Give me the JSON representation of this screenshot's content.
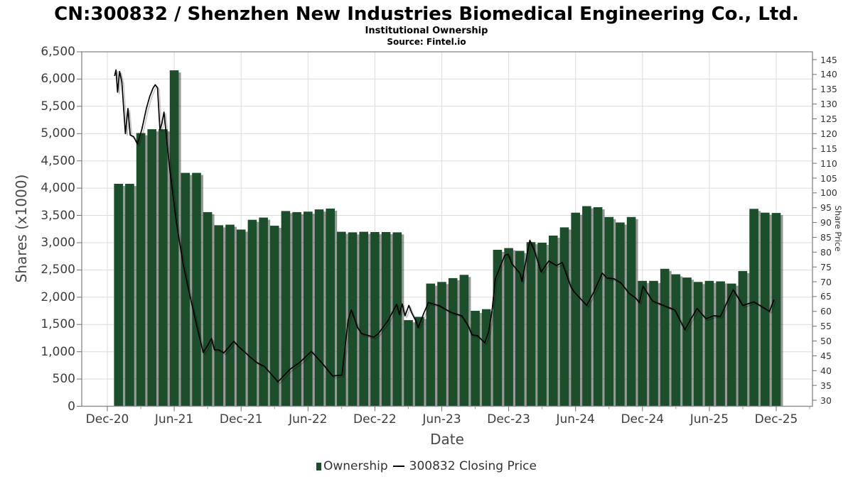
{
  "chart_data": {
    "type": [
      "bar",
      "line"
    ],
    "title": "CN:300832 / Shenzhen New Industries Biomedical Engineering Co., Ltd.",
    "subtitle": "Institutional Ownership",
    "source": "Source: Fintel.io",
    "colors": {
      "bar": "#1d4e2b",
      "bar_shadow": "rgba(0,0,0,0.40)",
      "line": "#000000",
      "gridline": "#dcdcdc",
      "frame": "#8e8e8e",
      "tick": "#6f6f6f"
    },
    "x_axis": {
      "label": "Date",
      "tick_labels": [
        "Dec-20",
        "Jun-21",
        "Dec-21",
        "Jun-22",
        "Dec-22",
        "Jun-23",
        "Dec-23",
        "Jun-24",
        "Dec-24",
        "Jun-25",
        "Dec-25"
      ]
    },
    "y_left": {
      "label": "Shares (x1000)",
      "min": 0,
      "max": 6500,
      "step": 500,
      "tick_labels": [
        "0",
        "500",
        "1,000",
        "1,500",
        "2,000",
        "2,500",
        "3,000",
        "3,500",
        "4,000",
        "4,500",
        "5,000",
        "5,500",
        "6,000",
        "6,500"
      ]
    },
    "y_right": {
      "label": "Share Price",
      "min": 30,
      "max": 145,
      "step": 5,
      "tick_labels": [
        "30",
        "35",
        "40",
        "45",
        "50",
        "55",
        "60",
        "65",
        "70",
        "75",
        "80",
        "85",
        "90",
        "95",
        "100",
        "105",
        "110",
        "115",
        "120",
        "125",
        "130",
        "135",
        "140",
        "145"
      ]
    },
    "series": [
      {
        "name": "Ownership",
        "type": "bar",
        "axis": "left",
        "color": "#1d4e2b",
        "months": [
          "Jan-21",
          "Feb-21",
          "Mar-21",
          "Apr-21",
          "May-21",
          "Jun-21",
          "Jul-21",
          "Aug-21",
          "Sep-21",
          "Oct-21",
          "Nov-21",
          "Dec-21",
          "Jan-22",
          "Feb-22",
          "Mar-22",
          "Apr-22",
          "May-22",
          "Jun-22",
          "Jul-22",
          "Aug-22",
          "Sep-22",
          "Oct-22",
          "Nov-22",
          "Dec-22",
          "Jan-23",
          "Feb-23",
          "Mar-23",
          "Apr-23",
          "May-23",
          "Jun-23",
          "Jul-23",
          "Aug-23",
          "Sep-23",
          "Oct-23",
          "Nov-23",
          "Dec-23",
          "Jan-24",
          "Feb-24",
          "Mar-24",
          "Apr-24",
          "May-24",
          "Jun-24",
          "Jul-24",
          "Aug-24",
          "Sep-24",
          "Oct-24",
          "Nov-24",
          "Dec-24",
          "Jan-25",
          "Feb-25",
          "Mar-25",
          "Apr-25",
          "May-25",
          "Jun-25",
          "Jul-25",
          "Aug-25",
          "Sep-25",
          "Oct-25",
          "Nov-25",
          "Dec-25"
        ],
        "values": [
          4080,
          4080,
          5010,
          5080,
          5080,
          6160,
          4280,
          4280,
          3560,
          3320,
          3330,
          3240,
          3420,
          3460,
          3310,
          3580,
          3560,
          3570,
          3610,
          3625,
          3200,
          3190,
          3200,
          3195,
          3195,
          3190,
          1580,
          1640,
          2250,
          2280,
          2350,
          2410,
          1750,
          1780,
          2870,
          2900,
          2850,
          3010,
          3000,
          3130,
          3280,
          3550,
          3670,
          3650,
          3470,
          3370,
          3470,
          2300,
          2300,
          2520,
          2420,
          2360,
          2280,
          2300,
          2290,
          2250,
          2480,
          3620,
          3550,
          3545
        ]
      },
      {
        "name": "300832 Closing Price",
        "type": "line",
        "axis": "right",
        "color": "#000000",
        "points": [
          [
            -0.35,
            139.5
          ],
          [
            -0.22,
            141.5
          ],
          [
            -0.08,
            134
          ],
          [
            0.1,
            141
          ],
          [
            0.3,
            137.5
          ],
          [
            0.62,
            120
          ],
          [
            0.85,
            128.5
          ],
          [
            1.05,
            119.5
          ],
          [
            1.35,
            119
          ],
          [
            1.7,
            116.5
          ],
          [
            2.1,
            121.5
          ],
          [
            2.5,
            128.5
          ],
          [
            2.8,
            132.5
          ],
          [
            3.1,
            135.4
          ],
          [
            3.3,
            136.5
          ],
          [
            3.5,
            135.5
          ],
          [
            3.72,
            121.3
          ],
          [
            3.9,
            123.5
          ],
          [
            4.08,
            127.3
          ],
          [
            4.6,
            108
          ],
          [
            5.2,
            90
          ],
          [
            5.8,
            76
          ],
          [
            6.2,
            68.9
          ],
          [
            6.6,
            62.1
          ],
          [
            7.0,
            55.4
          ],
          [
            7.6,
            46.1
          ],
          [
            8.0,
            48.5
          ],
          [
            8.35,
            50.9
          ],
          [
            8.6,
            47
          ],
          [
            9.0,
            47
          ],
          [
            9.45,
            46
          ],
          [
            9.8,
            47.5
          ],
          [
            10.35,
            49.9
          ],
          [
            10.8,
            48
          ],
          [
            11.5,
            45.7
          ],
          [
            11.8,
            44.6
          ],
          [
            12.5,
            42.5
          ],
          [
            13.1,
            41.4
          ],
          [
            13.35,
            40.3
          ],
          [
            14.3,
            36.2
          ],
          [
            15.4,
            40.5
          ],
          [
            16.3,
            42.9
          ],
          [
            17.3,
            46.5
          ],
          [
            18.4,
            41.9
          ],
          [
            19.2,
            38.2
          ],
          [
            20.05,
            38.5
          ],
          [
            20.6,
            57
          ],
          [
            20.88,
            60.5
          ],
          [
            21.45,
            54.5
          ],
          [
            21.8,
            52.5
          ],
          [
            22.9,
            51.3
          ],
          [
            23.3,
            52.4
          ],
          [
            24.2,
            57
          ],
          [
            24.95,
            62.4
          ],
          [
            25.2,
            58.9
          ],
          [
            25.45,
            62.5
          ],
          [
            25.7,
            58.5
          ],
          [
            26.05,
            62
          ],
          [
            26.3,
            59.5
          ],
          [
            26.65,
            57
          ],
          [
            26.88,
            54.5
          ],
          [
            27.4,
            59.5
          ],
          [
            27.8,
            63
          ],
          [
            28.8,
            61.9
          ],
          [
            29.8,
            59.7
          ],
          [
            30.8,
            58.5
          ],
          [
            31.4,
            54.9
          ],
          [
            31.7,
            52.1
          ],
          [
            32.2,
            51.8
          ],
          [
            32.85,
            49.4
          ],
          [
            33.2,
            53
          ],
          [
            33.5,
            60
          ],
          [
            33.8,
            71
          ],
          [
            34.65,
            78.9
          ],
          [
            34.95,
            79.3
          ],
          [
            35.3,
            76
          ],
          [
            36.0,
            72.9
          ],
          [
            36.2,
            70.1
          ],
          [
            36.9,
            84
          ],
          [
            37.35,
            80
          ],
          [
            37.9,
            73.3
          ],
          [
            38.6,
            77
          ],
          [
            39.3,
            75.5
          ],
          [
            39.8,
            76.5
          ],
          [
            40.6,
            68.1
          ],
          [
            40.9,
            66.5
          ],
          [
            42.0,
            62
          ],
          [
            42.6,
            66.3
          ],
          [
            43.4,
            72.9
          ],
          [
            43.8,
            71.3
          ],
          [
            44.45,
            71
          ],
          [
            45.05,
            69.7
          ],
          [
            45.8,
            66.1
          ],
          [
            46.4,
            64.5
          ],
          [
            46.72,
            62.9
          ],
          [
            47.05,
            68.5
          ],
          [
            47.9,
            63.5
          ],
          [
            48.9,
            62
          ],
          [
            49.9,
            60.5
          ],
          [
            50.8,
            53.8
          ],
          [
            51.9,
            61
          ],
          [
            52.7,
            57.5
          ],
          [
            53.4,
            58.5
          ],
          [
            54.0,
            58.3
          ],
          [
            54.7,
            64
          ],
          [
            55.15,
            67.3
          ],
          [
            56.0,
            62
          ],
          [
            57.0,
            63.2
          ],
          [
            57.9,
            61.2
          ],
          [
            58.4,
            60
          ],
          [
            58.8,
            64
          ]
        ]
      }
    ],
    "legend": {
      "position": "bottom-center"
    },
    "grid": true
  }
}
